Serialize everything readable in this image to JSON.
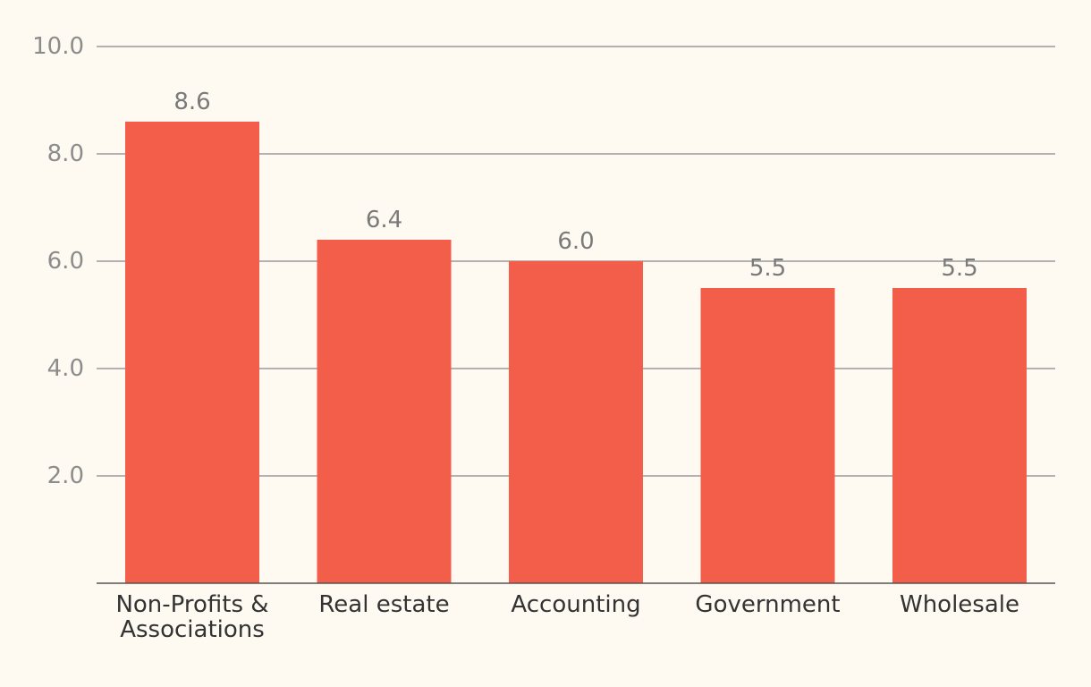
{
  "colors": {
    "background": "#fffaf1",
    "bar": "#f25e4a",
    "grid": "#9a9a9a",
    "axis_text": "#8c8c8c",
    "category_text": "#333333",
    "value_label_text": "#7a7a7a"
  },
  "chart_data": {
    "type": "bar",
    "categories": [
      "Non-Profits & Associations",
      "Real estate",
      "Accounting",
      "Government",
      "Wholesale"
    ],
    "category_lines": [
      [
        "Non-Profits &",
        "Associations"
      ],
      [
        "Real estate"
      ],
      [
        "Accounting"
      ],
      [
        "Government"
      ],
      [
        "Wholesale"
      ]
    ],
    "values": [
      8.6,
      6.4,
      6.0,
      5.5,
      5.5
    ],
    "value_labels": [
      "8.6",
      "6.4",
      "6.0",
      "5.5",
      "5.5"
    ],
    "title": "",
    "xlabel": "",
    "ylabel": "",
    "ylim": [
      0,
      10
    ],
    "yticks": [
      2,
      4,
      6,
      8,
      10
    ],
    "ytick_labels": [
      "2.0",
      "4.0",
      "6.0",
      "8.0",
      "10.0"
    ],
    "grid": true,
    "legend": "none"
  }
}
